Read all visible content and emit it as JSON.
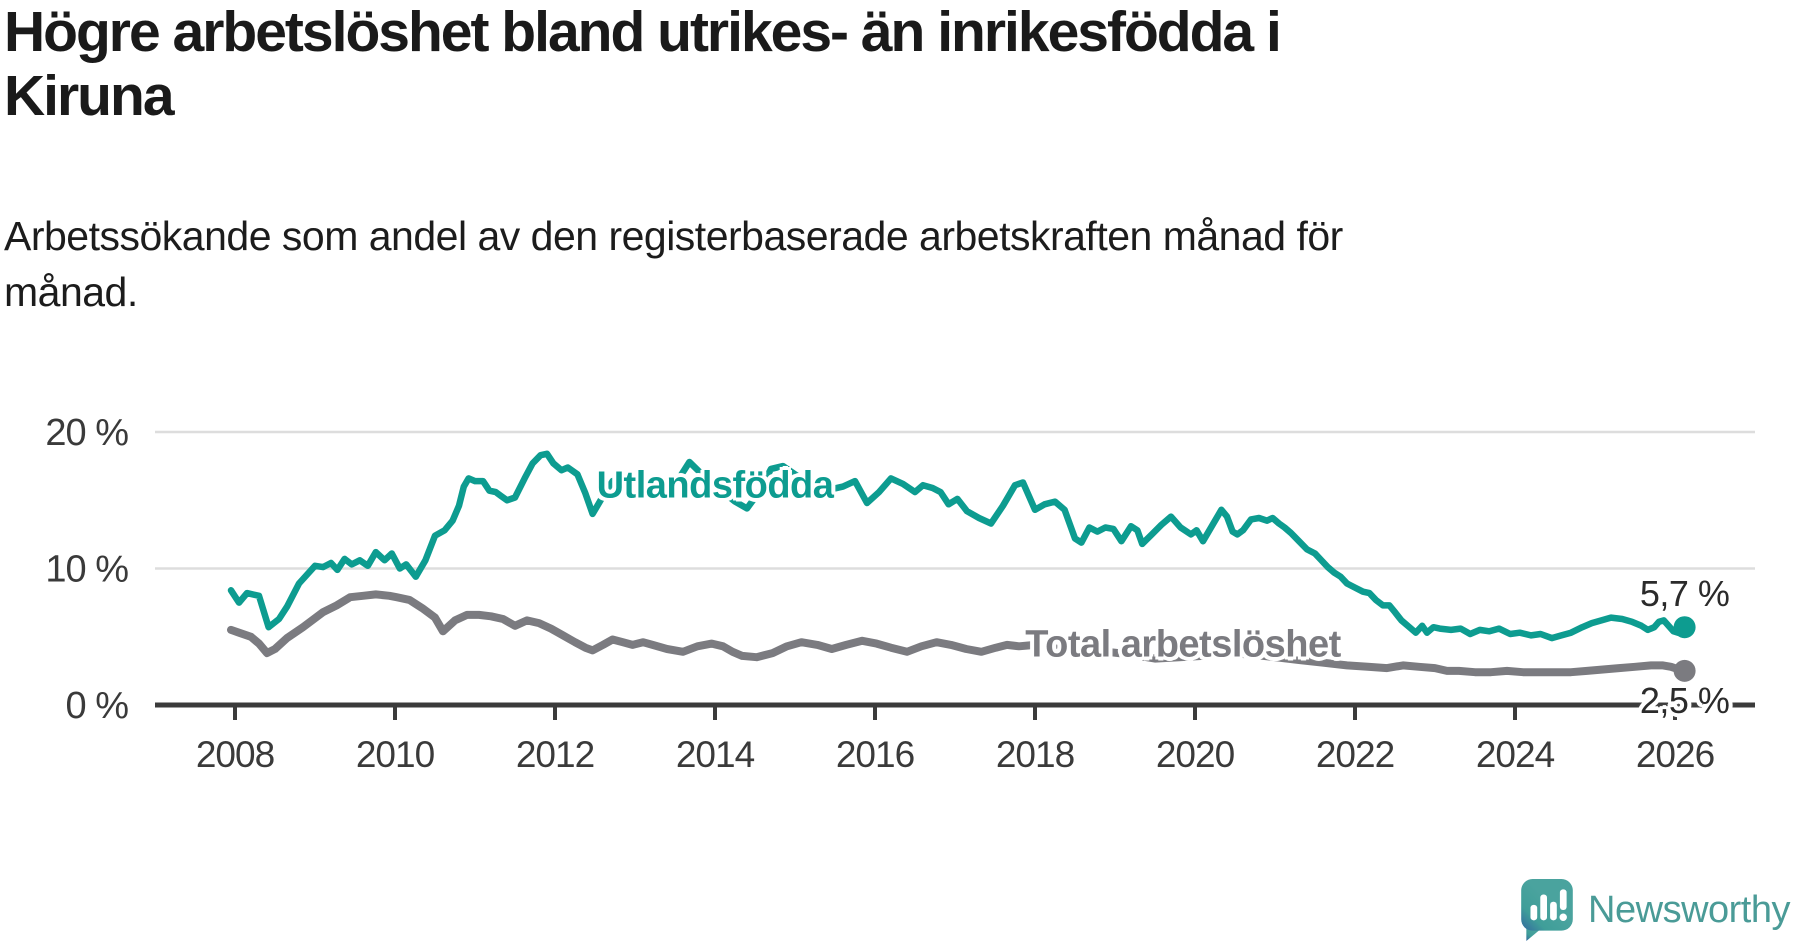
{
  "header": {
    "title": "Högre arbetslöshet bland utrikes- än inrikesfödda i\nKiruna",
    "subtitle": "Arbetssökande som andel av den registerbaserade arbetskraften månad för\nmånad."
  },
  "footer": {
    "brand": "Newsworthy"
  },
  "colors": {
    "teal": "#0d9c90",
    "gray": "#7b7b80",
    "axis": "#3b3b3b",
    "grid": "#dddddd",
    "tick_text": "#3a3a3a",
    "value_text": "#2b2b2b",
    "logo_teal": "#4a9b97",
    "background": "#ffffff"
  },
  "chart_data": {
    "type": "line",
    "title": "Högre arbetslöshet bland utrikes- än inrikesfödda i Kiruna",
    "subtitle": "Arbetssökande som andel av den registerbaserade arbetskraften månad för månad.",
    "x_unit": "decimal years (monthly data)",
    "y_unit": "percent of labour force",
    "xlim": [
      2007.0,
      2027.0
    ],
    "ylim": [
      0,
      20
    ],
    "grid": "horizontal gridlines at 10 and 20, baseline axis at 0",
    "legend_position": "inline labels on lines",
    "yticks": [
      {
        "value": 0,
        "label": "0 %"
      },
      {
        "value": 10,
        "label": "10 %"
      },
      {
        "value": 20,
        "label": "20 %"
      }
    ],
    "xticks": [
      {
        "value": 2008,
        "label": "2008"
      },
      {
        "value": 2010,
        "label": "2010"
      },
      {
        "value": 2012,
        "label": "2012"
      },
      {
        "value": 2014,
        "label": "2014"
      },
      {
        "value": 2016,
        "label": "2016"
      },
      {
        "value": 2018,
        "label": "2018"
      },
      {
        "value": 2020,
        "label": "2020"
      },
      {
        "value": 2022,
        "label": "2022"
      },
      {
        "value": 2024,
        "label": "2024"
      },
      {
        "value": 2026,
        "label": "2026"
      }
    ],
    "series": [
      {
        "name": "Utlandsfödda",
        "color": "#0d9c90",
        "end_value_label": "5,7 %",
        "points": [
          [
            2007.95,
            8.4
          ],
          [
            2008.05,
            7.5
          ],
          [
            2008.15,
            8.2
          ],
          [
            2008.3,
            8.0
          ],
          [
            2008.42,
            5.7
          ],
          [
            2008.55,
            6.3
          ],
          [
            2008.65,
            7.2
          ],
          [
            2008.8,
            8.9
          ],
          [
            2009.0,
            10.2
          ],
          [
            2009.1,
            10.1
          ],
          [
            2009.2,
            10.4
          ],
          [
            2009.28,
            9.9
          ],
          [
            2009.37,
            10.7
          ],
          [
            2009.46,
            10.3
          ],
          [
            2009.56,
            10.6
          ],
          [
            2009.66,
            10.2
          ],
          [
            2009.76,
            11.2
          ],
          [
            2009.87,
            10.6
          ],
          [
            2009.96,
            11.1
          ],
          [
            2010.06,
            10.0
          ],
          [
            2010.14,
            10.3
          ],
          [
            2010.26,
            9.4
          ],
          [
            2010.38,
            10.6
          ],
          [
            2010.5,
            12.4
          ],
          [
            2010.62,
            12.8
          ],
          [
            2010.72,
            13.5
          ],
          [
            2010.8,
            14.6
          ],
          [
            2010.86,
            16.0
          ],
          [
            2010.92,
            16.6
          ],
          [
            2011.0,
            16.4
          ],
          [
            2011.1,
            16.4
          ],
          [
            2011.18,
            15.7
          ],
          [
            2011.26,
            15.6
          ],
          [
            2011.33,
            15.3
          ],
          [
            2011.4,
            15.0
          ],
          [
            2011.5,
            15.2
          ],
          [
            2011.62,
            16.6
          ],
          [
            2011.72,
            17.7
          ],
          [
            2011.82,
            18.3
          ],
          [
            2011.9,
            18.4
          ],
          [
            2011.98,
            17.7
          ],
          [
            2012.08,
            17.2
          ],
          [
            2012.16,
            17.4
          ],
          [
            2012.28,
            16.9
          ],
          [
            2012.38,
            15.5
          ],
          [
            2012.47,
            14.0
          ],
          [
            2012.6,
            15.3
          ],
          [
            2012.72,
            16.4
          ],
          [
            2012.85,
            16.1
          ],
          [
            2012.95,
            16.6
          ],
          [
            2013.1,
            16.2
          ],
          [
            2013.25,
            15.8
          ],
          [
            2013.4,
            15.3
          ],
          [
            2013.55,
            16.6
          ],
          [
            2013.68,
            17.8
          ],
          [
            2013.82,
            17.0
          ],
          [
            2013.95,
            16.3
          ],
          [
            2014.1,
            15.6
          ],
          [
            2014.25,
            14.9
          ],
          [
            2014.4,
            14.4
          ],
          [
            2014.55,
            15.6
          ],
          [
            2014.7,
            17.3
          ],
          [
            2014.85,
            17.5
          ],
          [
            2015.0,
            16.9
          ],
          [
            2015.15,
            16.3
          ],
          [
            2015.3,
            15.7
          ],
          [
            2015.45,
            15.8
          ],
          [
            2015.6,
            16.0
          ],
          [
            2015.75,
            16.4
          ],
          [
            2015.9,
            14.8
          ],
          [
            2016.05,
            15.6
          ],
          [
            2016.2,
            16.6
          ],
          [
            2016.35,
            16.2
          ],
          [
            2016.5,
            15.6
          ],
          [
            2016.6,
            16.1
          ],
          [
            2016.72,
            15.9
          ],
          [
            2016.82,
            15.6
          ],
          [
            2016.92,
            14.7
          ],
          [
            2017.03,
            15.1
          ],
          [
            2017.15,
            14.2
          ],
          [
            2017.3,
            13.7
          ],
          [
            2017.45,
            13.3
          ],
          [
            2017.6,
            14.6
          ],
          [
            2017.75,
            16.1
          ],
          [
            2017.85,
            16.3
          ],
          [
            2018.0,
            14.3
          ],
          [
            2018.12,
            14.7
          ],
          [
            2018.25,
            14.9
          ],
          [
            2018.37,
            14.3
          ],
          [
            2018.5,
            12.2
          ],
          [
            2018.58,
            11.9
          ],
          [
            2018.68,
            13.0
          ],
          [
            2018.78,
            12.7
          ],
          [
            2018.88,
            13.0
          ],
          [
            2018.98,
            12.9
          ],
          [
            2019.08,
            12.0
          ],
          [
            2019.2,
            13.1
          ],
          [
            2019.28,
            12.8
          ],
          [
            2019.34,
            11.8
          ],
          [
            2019.46,
            12.5
          ],
          [
            2019.58,
            13.2
          ],
          [
            2019.7,
            13.8
          ],
          [
            2019.82,
            13.0
          ],
          [
            2019.95,
            12.5
          ],
          [
            2020.02,
            12.8
          ],
          [
            2020.1,
            12.0
          ],
          [
            2020.22,
            13.2
          ],
          [
            2020.33,
            14.3
          ],
          [
            2020.4,
            13.8
          ],
          [
            2020.47,
            12.7
          ],
          [
            2020.53,
            12.5
          ],
          [
            2020.6,
            12.8
          ],
          [
            2020.7,
            13.6
          ],
          [
            2020.8,
            13.7
          ],
          [
            2020.9,
            13.5
          ],
          [
            2020.97,
            13.7
          ],
          [
            2021.05,
            13.3
          ],
          [
            2021.12,
            13.0
          ],
          [
            2021.2,
            12.6
          ],
          [
            2021.3,
            12.0
          ],
          [
            2021.4,
            11.4
          ],
          [
            2021.5,
            11.1
          ],
          [
            2021.58,
            10.6
          ],
          [
            2021.66,
            10.1
          ],
          [
            2021.74,
            9.7
          ],
          [
            2021.82,
            9.4
          ],
          [
            2021.9,
            8.9
          ],
          [
            2022.0,
            8.6
          ],
          [
            2022.1,
            8.3
          ],
          [
            2022.18,
            8.2
          ],
          [
            2022.26,
            7.7
          ],
          [
            2022.35,
            7.3
          ],
          [
            2022.43,
            7.3
          ],
          [
            2022.5,
            6.8
          ],
          [
            2022.58,
            6.2
          ],
          [
            2022.68,
            5.7
          ],
          [
            2022.76,
            5.3
          ],
          [
            2022.84,
            5.8
          ],
          [
            2022.9,
            5.3
          ],
          [
            2022.98,
            5.7
          ],
          [
            2023.06,
            5.6
          ],
          [
            2023.2,
            5.5
          ],
          [
            2023.32,
            5.6
          ],
          [
            2023.44,
            5.2
          ],
          [
            2023.56,
            5.5
          ],
          [
            2023.68,
            5.4
          ],
          [
            2023.8,
            5.6
          ],
          [
            2023.94,
            5.2
          ],
          [
            2024.06,
            5.3
          ],
          [
            2024.2,
            5.1
          ],
          [
            2024.32,
            5.2
          ],
          [
            2024.46,
            4.9
          ],
          [
            2024.58,
            5.1
          ],
          [
            2024.7,
            5.3
          ],
          [
            2024.84,
            5.7
          ],
          [
            2024.96,
            6.0
          ],
          [
            2025.08,
            6.2
          ],
          [
            2025.2,
            6.4
          ],
          [
            2025.34,
            6.3
          ],
          [
            2025.46,
            6.1
          ],
          [
            2025.58,
            5.8
          ],
          [
            2025.66,
            5.5
          ],
          [
            2025.74,
            5.7
          ],
          [
            2025.8,
            6.1
          ],
          [
            2025.86,
            6.2
          ],
          [
            2025.92,
            5.8
          ],
          [
            2025.98,
            5.4
          ],
          [
            2026.04,
            5.3
          ],
          [
            2026.12,
            5.7
          ]
        ]
      },
      {
        "name": "Total arbetslöshet",
        "color": "#7b7b80",
        "end_value_label": "2,5 %",
        "points": [
          [
            2007.95,
            5.5
          ],
          [
            2008.05,
            5.3
          ],
          [
            2008.2,
            5.0
          ],
          [
            2008.3,
            4.5
          ],
          [
            2008.4,
            3.8
          ],
          [
            2008.5,
            4.1
          ],
          [
            2008.65,
            4.9
          ],
          [
            2008.85,
            5.7
          ],
          [
            2009.1,
            6.8
          ],
          [
            2009.27,
            7.3
          ],
          [
            2009.44,
            7.9
          ],
          [
            2009.6,
            8.0
          ],
          [
            2009.76,
            8.1
          ],
          [
            2009.93,
            8.0
          ],
          [
            2010.02,
            7.9
          ],
          [
            2010.18,
            7.7
          ],
          [
            2010.34,
            7.1
          ],
          [
            2010.5,
            6.4
          ],
          [
            2010.6,
            5.4
          ],
          [
            2010.75,
            6.2
          ],
          [
            2010.9,
            6.6
          ],
          [
            2011.05,
            6.6
          ],
          [
            2011.2,
            6.5
          ],
          [
            2011.35,
            6.3
          ],
          [
            2011.5,
            5.8
          ],
          [
            2011.65,
            6.2
          ],
          [
            2011.8,
            6.0
          ],
          [
            2011.95,
            5.6
          ],
          [
            2012.1,
            5.1
          ],
          [
            2012.25,
            4.6
          ],
          [
            2012.38,
            4.2
          ],
          [
            2012.47,
            4.0
          ],
          [
            2012.6,
            4.4
          ],
          [
            2012.72,
            4.8
          ],
          [
            2012.85,
            4.6
          ],
          [
            2012.97,
            4.4
          ],
          [
            2013.1,
            4.6
          ],
          [
            2013.22,
            4.4
          ],
          [
            2013.4,
            4.1
          ],
          [
            2013.6,
            3.9
          ],
          [
            2013.78,
            4.3
          ],
          [
            2013.96,
            4.5
          ],
          [
            2014.1,
            4.3
          ],
          [
            2014.22,
            3.9
          ],
          [
            2014.34,
            3.6
          ],
          [
            2014.52,
            3.5
          ],
          [
            2014.72,
            3.8
          ],
          [
            2014.9,
            4.3
          ],
          [
            2015.08,
            4.6
          ],
          [
            2015.28,
            4.4
          ],
          [
            2015.46,
            4.1
          ],
          [
            2015.64,
            4.4
          ],
          [
            2015.84,
            4.7
          ],
          [
            2016.02,
            4.5
          ],
          [
            2016.2,
            4.2
          ],
          [
            2016.4,
            3.9
          ],
          [
            2016.58,
            4.3
          ],
          [
            2016.77,
            4.6
          ],
          [
            2016.95,
            4.4
          ],
          [
            2017.14,
            4.1
          ],
          [
            2017.33,
            3.9
          ],
          [
            2017.51,
            4.2
          ],
          [
            2017.65,
            4.4
          ],
          [
            2017.8,
            4.3
          ],
          [
            2018.0,
            4.4
          ],
          [
            2018.3,
            4.1
          ],
          [
            2018.6,
            3.8
          ],
          [
            2018.9,
            3.9
          ],
          [
            2019.2,
            3.7
          ],
          [
            2019.5,
            3.4
          ],
          [
            2019.8,
            3.5
          ],
          [
            2020.1,
            3.6
          ],
          [
            2020.4,
            3.8
          ],
          [
            2020.7,
            3.7
          ],
          [
            2021.0,
            3.5
          ],
          [
            2021.3,
            3.3
          ],
          [
            2021.6,
            3.1
          ],
          [
            2021.9,
            2.9
          ],
          [
            2022.16,
            2.8
          ],
          [
            2022.4,
            2.7
          ],
          [
            2022.6,
            2.9
          ],
          [
            2022.8,
            2.8
          ],
          [
            2023.0,
            2.7
          ],
          [
            2023.15,
            2.5
          ],
          [
            2023.3,
            2.5
          ],
          [
            2023.5,
            2.4
          ],
          [
            2023.7,
            2.4
          ],
          [
            2023.9,
            2.5
          ],
          [
            2024.1,
            2.4
          ],
          [
            2024.3,
            2.4
          ],
          [
            2024.5,
            2.4
          ],
          [
            2024.7,
            2.4
          ],
          [
            2024.9,
            2.5
          ],
          [
            2025.1,
            2.6
          ],
          [
            2025.3,
            2.7
          ],
          [
            2025.5,
            2.8
          ],
          [
            2025.7,
            2.9
          ],
          [
            2025.85,
            2.9
          ],
          [
            2025.95,
            2.8
          ],
          [
            2026.05,
            2.6
          ],
          [
            2026.12,
            2.5
          ]
        ]
      }
    ],
    "annotations": [
      {
        "id": "series-label-utlandsfodda",
        "text": "Utlandsfödda",
        "x": 2014.0,
        "y": 16.05,
        "color": "#0d9c90",
        "kind": "series-label"
      },
      {
        "id": "series-label-total",
        "text": "Total arbetslöshet",
        "x": 2019.85,
        "y": 4.4,
        "color": "#7b7b80",
        "kind": "series-label"
      },
      {
        "id": "end-value-utlandsfodda",
        "text": "5,7 %",
        "x": 2026.12,
        "y": 8.15,
        "color": "#2b2b2b",
        "kind": "end-label"
      },
      {
        "id": "end-value-total",
        "text": "2,5 %",
        "x": 2026.12,
        "y": 0.3,
        "color": "#2b2b2b",
        "kind": "end-label"
      }
    ]
  }
}
